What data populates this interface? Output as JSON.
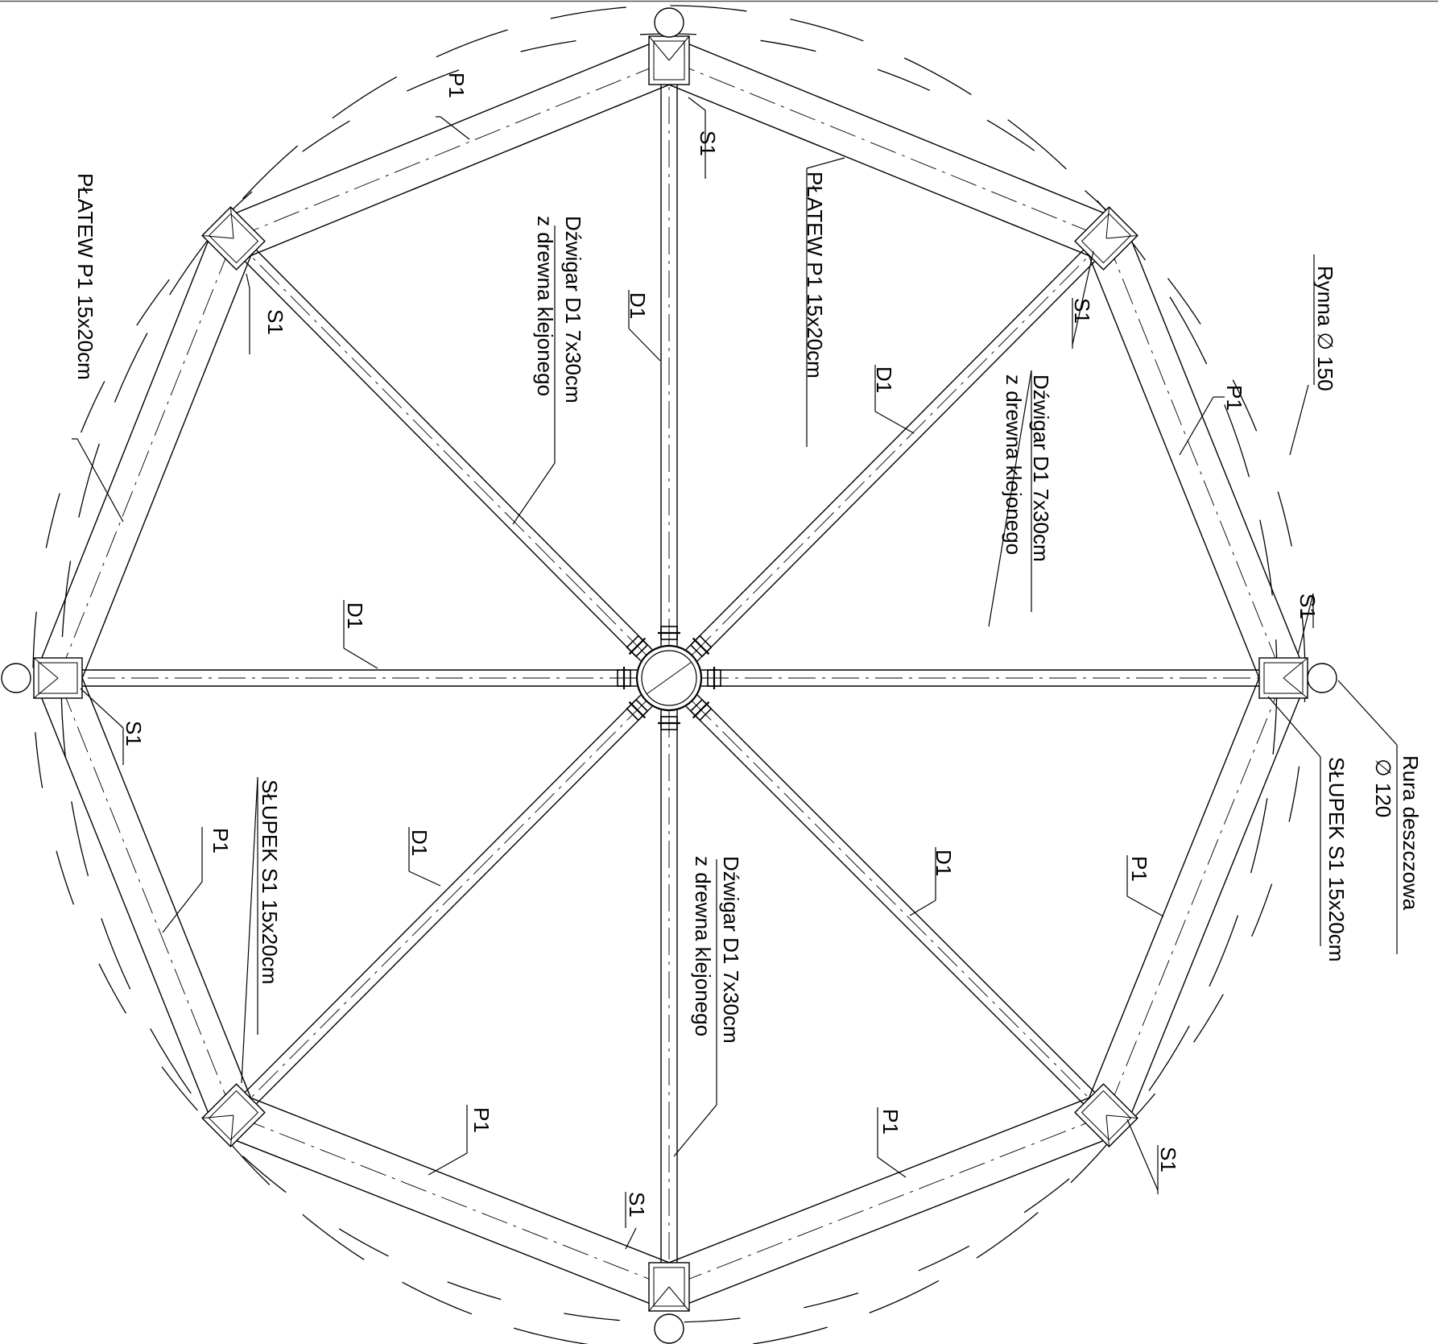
{
  "colors": {
    "line": "#000000",
    "background": "#ffffff"
  },
  "labels": {
    "platew_left": "PŁATEW P1 15x20cm",
    "platew_top": "PŁATEW P1 15x20cm",
    "dzwigar_top_l1": "Dźwigar D1 7x30cm",
    "dzwigar_top_l2": "z drewna klejonego",
    "dzwigar_right_l1": "Dźwigar D1 7x30cm",
    "dzwigar_right_l2": "z drewna klejonego",
    "dzwigar_bottom_l1": "Dźwigar D1 7x30cm",
    "dzwigar_bottom_l2": "z drewna klejonego",
    "rynna": "Rynna ∅ 150",
    "rura_l1": "Rura deszczowa",
    "rura_l2": "∅ 120",
    "slupek_right": "SŁUPEK S1 15x20cm",
    "slupek_left": "SŁUPEK S1 15x20cm",
    "p1": "P1",
    "s1": "S1",
    "d1": "D1"
  }
}
